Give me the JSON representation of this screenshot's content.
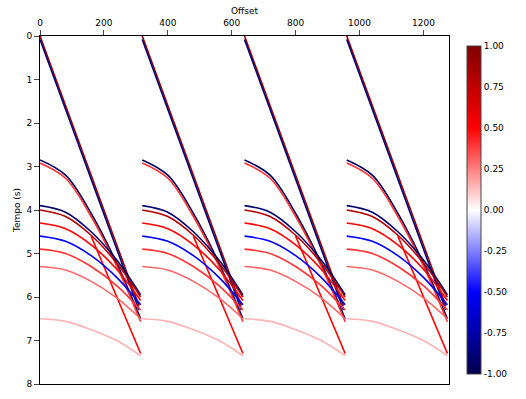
{
  "chart_data": {
    "type": "line",
    "x_label": "Offset",
    "y_label": "Tempo (s)",
    "xlim": [
      0,
      1280
    ],
    "ylim": [
      8,
      0
    ],
    "xticks": [
      0,
      200,
      400,
      600,
      800,
      1000,
      1200
    ],
    "yticks": [
      0,
      1,
      2,
      3,
      4,
      5,
      6,
      7,
      8
    ],
    "grid": false,
    "colorbar": {
      "range": [
        -1,
        1
      ],
      "ticks": [
        {
          "value": -1,
          "label": "-1.00"
        },
        {
          "value": -0.75,
          "label": "-0.75"
        },
        {
          "value": -0.5,
          "label": "-0.50"
        },
        {
          "value": -0.25,
          "label": "-0.25"
        },
        {
          "value": 0,
          "label": "0.00"
        },
        {
          "value": 0.25,
          "label": "0.25"
        },
        {
          "value": 0.5,
          "label": "0.50"
        },
        {
          "value": 0.75,
          "label": "0.75"
        },
        {
          "value": 1,
          "label": "1.00"
        }
      ]
    },
    "series": [
      {
        "amplitude": 0.9,
        "x": [
          0,
          310,
          null,
          320,
          630,
          null,
          640,
          950,
          null,
          960,
          1270
        ],
        "values": [
          0,
          6.2,
          null,
          0,
          6.2,
          null,
          0,
          6.2,
          null,
          0,
          6.2
        ]
      },
      {
        "amplitude": -0.9,
        "x": [
          0,
          310,
          null,
          320,
          630,
          null,
          640,
          950,
          null,
          960,
          1270
        ],
        "values": [
          0.08,
          6.3,
          null,
          0.08,
          6.3,
          null,
          0.08,
          6.3,
          null,
          0.08,
          6.3
        ]
      },
      {
        "amplitude": 0.5,
        "x": [
          160,
          315,
          null,
          480,
          635,
          null,
          800,
          955,
          null,
          1120,
          1275
        ],
        "values": [
          4.6,
          7.3,
          null,
          4.6,
          7.3,
          null,
          4.6,
          7.3,
          null,
          4.6,
          7.3
        ]
      },
      {
        "amplitude": -0.95,
        "x": [
          0,
          80,
          160,
          240,
          315,
          null,
          320,
          400,
          480,
          560,
          635,
          null,
          640,
          720,
          800,
          880,
          955,
          null,
          960,
          1040,
          1120,
          1200,
          1275
        ],
        "values": [
          2.85,
          3.2,
          4.08,
          5.22,
          6.5,
          null,
          2.85,
          3.2,
          4.08,
          5.22,
          6.5,
          null,
          2.85,
          3.2,
          4.08,
          5.22,
          6.5,
          null,
          2.85,
          3.2,
          4.08,
          5.22,
          6.5
        ]
      },
      {
        "amplitude": 0.4,
        "x": [
          0,
          80,
          160,
          240,
          315,
          null,
          320,
          400,
          480,
          560,
          635,
          null,
          640,
          720,
          800,
          880,
          955,
          null,
          960,
          1040,
          1120,
          1200,
          1275
        ],
        "values": [
          2.92,
          3.27,
          4.15,
          5.29,
          6.57,
          null,
          2.92,
          3.27,
          4.15,
          5.29,
          6.57,
          null,
          2.92,
          3.27,
          4.15,
          5.29,
          6.57,
          null,
          2.92,
          3.27,
          4.15,
          5.29,
          6.57
        ]
      },
      {
        "amplitude": -0.9,
        "x": [
          0,
          80,
          160,
          240,
          315,
          null,
          320,
          400,
          480,
          560,
          635,
          null,
          640,
          720,
          800,
          880,
          955,
          null,
          960,
          1040,
          1120,
          1200,
          1275
        ],
        "values": [
          3.9,
          4.05,
          4.5,
          5.15,
          5.95,
          null,
          3.9,
          4.05,
          4.5,
          5.15,
          5.95,
          null,
          3.9,
          4.05,
          4.5,
          5.15,
          5.95,
          null,
          3.9,
          4.05,
          4.5,
          5.15,
          5.95
        ]
      },
      {
        "amplitude": 0.8,
        "x": [
          0,
          80,
          160,
          240,
          315,
          null,
          320,
          400,
          480,
          560,
          635,
          null,
          640,
          720,
          800,
          880,
          955,
          null,
          960,
          1040,
          1120,
          1200,
          1275
        ],
        "values": [
          4.0,
          4.15,
          4.58,
          5.22,
          6.0,
          null,
          4.0,
          4.15,
          4.58,
          5.22,
          6.0,
          null,
          4.0,
          4.15,
          4.58,
          5.22,
          6.0,
          null,
          4.0,
          4.15,
          4.58,
          5.22,
          6.0
        ]
      },
      {
        "amplitude": 0.5,
        "x": [
          0,
          80,
          160,
          240,
          315,
          null,
          320,
          400,
          480,
          560,
          635,
          null,
          640,
          720,
          800,
          880,
          955,
          null,
          960,
          1040,
          1120,
          1200,
          1275
        ],
        "values": [
          4.3,
          4.43,
          4.8,
          5.36,
          6.08,
          null,
          4.3,
          4.43,
          4.8,
          5.36,
          6.08,
          null,
          4.3,
          4.43,
          4.8,
          5.36,
          6.08,
          null,
          4.3,
          4.43,
          4.8,
          5.36,
          6.08
        ]
      },
      {
        "amplitude": -0.5,
        "x": [
          0,
          80,
          160,
          240,
          315,
          null,
          320,
          400,
          480,
          560,
          635,
          null,
          640,
          720,
          800,
          880,
          955,
          null,
          960,
          1040,
          1120,
          1200,
          1275
        ],
        "values": [
          4.6,
          4.72,
          5.05,
          5.55,
          6.18,
          null,
          4.6,
          4.72,
          5.05,
          5.55,
          6.18,
          null,
          4.6,
          4.72,
          5.05,
          5.55,
          6.18,
          null,
          4.6,
          4.72,
          5.05,
          5.55,
          6.18
        ]
      },
      {
        "amplitude": 0.4,
        "x": [
          0,
          80,
          160,
          240,
          315,
          null,
          320,
          400,
          480,
          560,
          635,
          null,
          640,
          720,
          800,
          880,
          955,
          null,
          960,
          1040,
          1120,
          1200,
          1275
        ],
        "values": [
          4.9,
          5.0,
          5.3,
          5.74,
          6.3,
          null,
          4.9,
          5.0,
          5.3,
          5.74,
          6.3,
          null,
          4.9,
          5.0,
          5.3,
          5.74,
          6.3,
          null,
          4.9,
          5.0,
          5.3,
          5.74,
          6.3
        ]
      },
      {
        "amplitude": 0.3,
        "x": [
          0,
          80,
          160,
          240,
          315,
          null,
          320,
          400,
          480,
          560,
          635,
          null,
          640,
          720,
          800,
          880,
          955,
          null,
          960,
          1040,
          1120,
          1200,
          1275
        ],
        "values": [
          5.3,
          5.38,
          5.64,
          6.02,
          6.5,
          null,
          5.3,
          5.38,
          5.64,
          6.02,
          6.5,
          null,
          5.3,
          5.38,
          5.64,
          6.02,
          6.5,
          null,
          5.3,
          5.38,
          5.64,
          6.02,
          6.5
        ]
      },
      {
        "amplitude": 0.15,
        "x": [
          0,
          80,
          160,
          240,
          315,
          null,
          320,
          400,
          480,
          560,
          635,
          null,
          640,
          720,
          800,
          880,
          955,
          null,
          960,
          1040,
          1120,
          1200,
          1275
        ],
        "values": [
          6.5,
          6.56,
          6.75,
          7.0,
          7.35,
          null,
          6.5,
          6.56,
          6.75,
          7.0,
          7.35,
          null,
          6.5,
          6.56,
          6.75,
          7.0,
          7.35,
          null,
          6.5,
          6.56,
          6.75,
          7.0,
          7.35
        ]
      }
    ]
  }
}
